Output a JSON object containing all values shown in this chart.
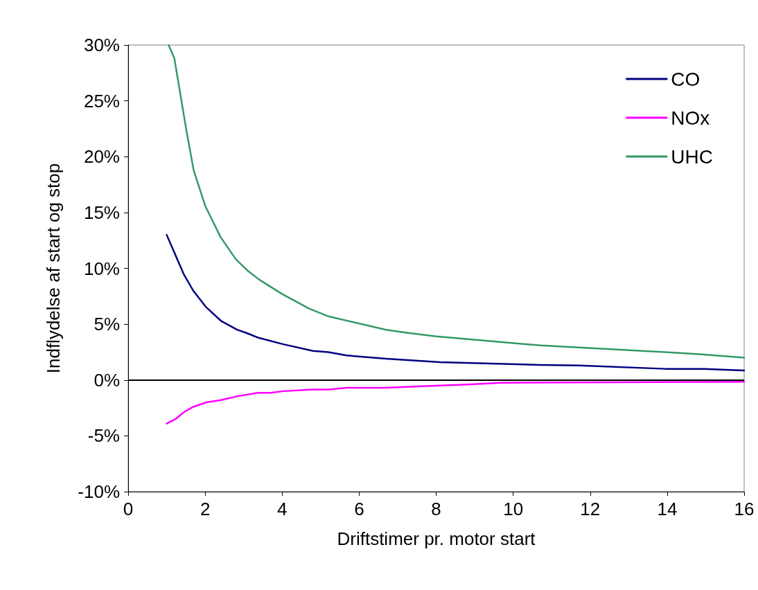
{
  "chart_data": {
    "type": "line",
    "xlabel": "Driftstimer pr. motor start",
    "ylabel": "Indflydelse af start og stop",
    "xlim": [
      0,
      16
    ],
    "xticks": [
      0,
      2,
      4,
      6,
      8,
      10,
      12,
      14,
      16
    ],
    "ylim": [
      -10,
      30
    ],
    "yticks": [
      {
        "value": -10,
        "label": "-10%"
      },
      {
        "value": -5,
        "label": "-5%"
      },
      {
        "value": 0,
        "label": "0%"
      },
      {
        "value": 5,
        "label": "5%"
      },
      {
        "value": 10,
        "label": "10%"
      },
      {
        "value": 15,
        "label": "15%"
      },
      {
        "value": 20,
        "label": "20%"
      },
      {
        "value": 25,
        "label": "25%"
      },
      {
        "value": 30,
        "label": "30%"
      }
    ],
    "grid": false,
    "legend": "top right",
    "marker": "none",
    "line_style": "solid",
    "ref_lines": [
      {
        "axis": "y",
        "value": 0,
        "color": "#000000"
      }
    ],
    "series": [
      {
        "name": "CO",
        "color": "#000080",
        "x": [
          1,
          1.44,
          1.69,
          2.03,
          2.41,
          2.83,
          3.08,
          3.37,
          4.03,
          4.8,
          5.2,
          5.67,
          6.7,
          8.1,
          10.7,
          11.7,
          13.95,
          14.9,
          16
        ],
        "values": [
          13,
          9.5,
          8,
          6.5,
          5.3,
          4.5,
          4.2,
          3.8,
          3.2,
          2.6,
          2.5,
          2.2,
          1.9,
          1.6,
          1.35,
          1.3,
          1,
          1,
          0.85
        ]
      },
      {
        "name": "NOx",
        "color": "#ff00ff",
        "x": [
          1,
          1.23,
          1.44,
          1.69,
          2.03,
          2.41,
          2.84,
          3.37,
          3.7,
          4.03,
          4.8,
          5.2,
          5.67,
          6.7,
          7.3,
          8.8,
          9.7,
          16
        ],
        "values": [
          -3.9,
          -3.5,
          -2.9,
          -2.4,
          -2,
          -1.8,
          -1.45,
          -1.15,
          -1.15,
          -1,
          -0.85,
          -0.85,
          -0.7,
          -0.7,
          -0.6,
          -0.4,
          -0.25,
          -0.15
        ]
      },
      {
        "name": "UHC",
        "color": "#339966",
        "x": [
          1.05,
          1.2,
          1.5,
          1.7,
          2,
          2.2,
          2.4,
          2.8,
          3.1,
          3.4,
          4,
          4.7,
          5.2,
          6.7,
          7.3,
          8,
          10.7,
          13.95,
          14.9,
          16
        ],
        "values": [
          30,
          28.8,
          22.6,
          18.8,
          15.6,
          14.2,
          12.8,
          10.8,
          9.8,
          9,
          7.7,
          6.4,
          5.7,
          4.5,
          4.2,
          3.9,
          3.1,
          2.5,
          2.3,
          2
        ]
      }
    ]
  }
}
